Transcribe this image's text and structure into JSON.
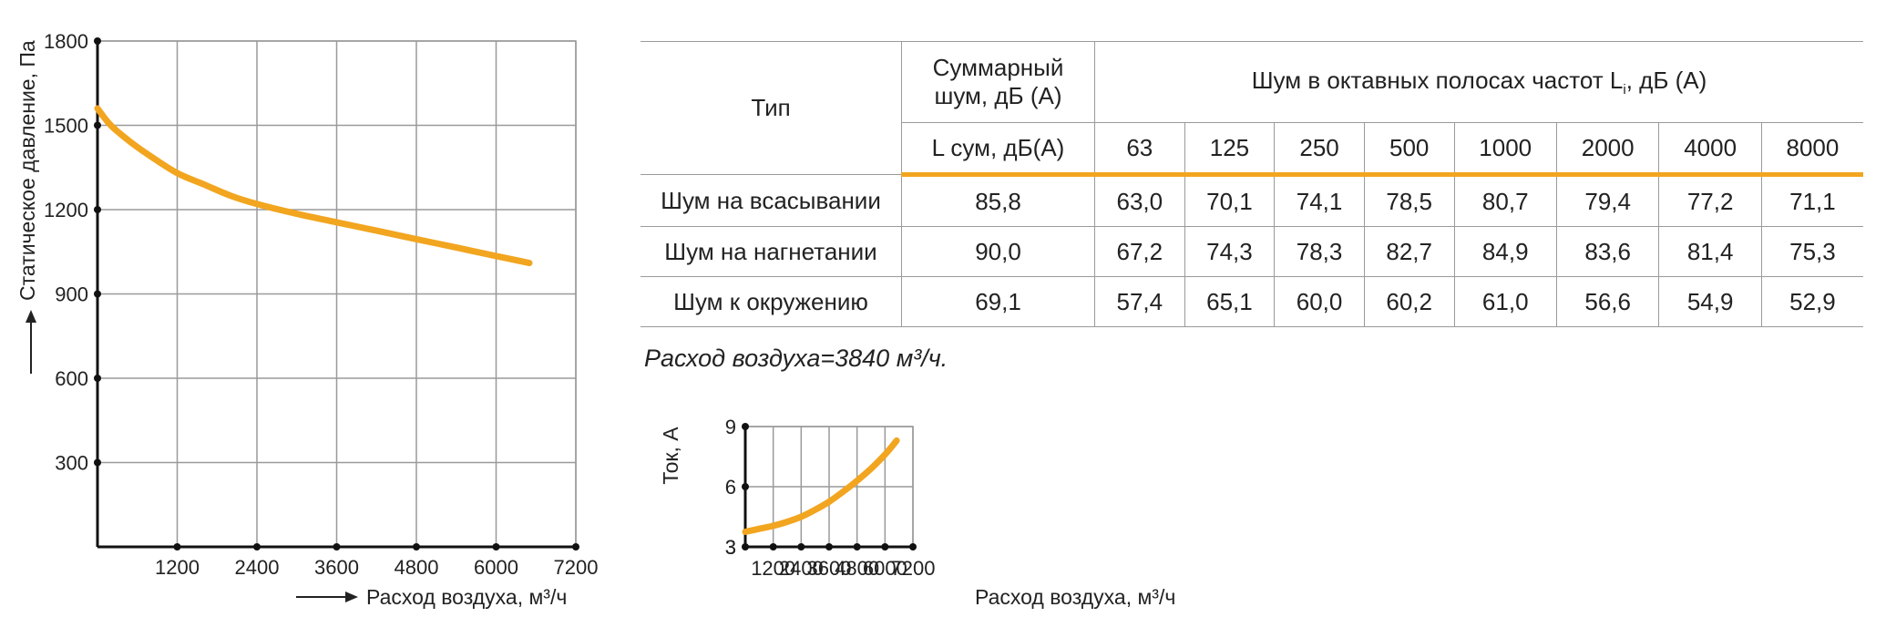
{
  "chart_data": [
    {
      "type": "line",
      "xlabel": "Расход воздуха, м³/ч",
      "ylabel": "Статическое давление, Па",
      "xlim": [
        0,
        7200
      ],
      "ylim": [
        0,
        1800
      ],
      "x_ticks": [
        "1200",
        "2400",
        "3600",
        "4800",
        "6000",
        "7200"
      ],
      "y_ticks": [
        "300",
        "600",
        "900",
        "1200",
        "1500",
        "1800"
      ],
      "grid": true,
      "color": "#f2a51f",
      "series": [
        {
          "x": [
            0,
            200,
            500,
            800,
            1200,
            1600,
            2000,
            2400,
            3000,
            3600,
            4200,
            4800,
            5400,
            6000,
            6500
          ],
          "values": [
            1560,
            1500,
            1440,
            1390,
            1330,
            1290,
            1250,
            1220,
            1185,
            1155,
            1125,
            1095,
            1065,
            1035,
            1010
          ]
        }
      ]
    },
    {
      "type": "line",
      "xlabel": "Расход воздуха, м³/ч",
      "ylabel": "Ток, А",
      "xlim": [
        0,
        7200
      ],
      "ylim": [
        3,
        9
      ],
      "x_ticks": [
        "1200",
        "2400",
        "3600",
        "4800",
        "6000",
        "7200"
      ],
      "y_ticks": [
        "3",
        "6",
        "9"
      ],
      "grid": true,
      "color": "#f2a51f",
      "series": [
        {
          "x": [
            0,
            600,
            1200,
            1800,
            2400,
            3000,
            3600,
            4200,
            4800,
            5400,
            6000,
            6500
          ],
          "values": [
            3.75,
            3.9,
            4.05,
            4.25,
            4.5,
            4.85,
            5.25,
            5.75,
            6.3,
            6.9,
            7.6,
            8.3
          ]
        }
      ]
    }
  ],
  "table": {
    "header_type": "Тип",
    "header_total_line1": "Суммарный",
    "header_total_line2": "шум, дБ (А)",
    "header_octave": "Шум в октавных полосах частот L",
    "header_octave_sub": "i",
    "header_octave_tail": ", дБ (А)",
    "header_lsum": "L сум, дБ(А)",
    "frequencies": [
      "63",
      "125",
      "250",
      "500",
      "1000",
      "2000",
      "4000",
      "8000"
    ],
    "rows": [
      {
        "type": "Шум на всасывании",
        "total": "85,8",
        "values": [
          "63,0",
          "70,1",
          "74,1",
          "78,5",
          "80,7",
          "79,4",
          "77,2",
          "71,1"
        ]
      },
      {
        "type": "Шум на нагнетании",
        "total": "90,0",
        "values": [
          "67,2",
          "74,3",
          "78,3",
          "82,7",
          "84,9",
          "83,6",
          "81,4",
          "75,3"
        ]
      },
      {
        "type": "Шум к окружению",
        "total": "69,1",
        "values": [
          "57,4",
          "65,1",
          "60,0",
          "60,2",
          "61,0",
          "56,6",
          "54,9",
          "52,9"
        ]
      }
    ]
  },
  "flow_note": "Расход воздуха=3840 м³/ч."
}
